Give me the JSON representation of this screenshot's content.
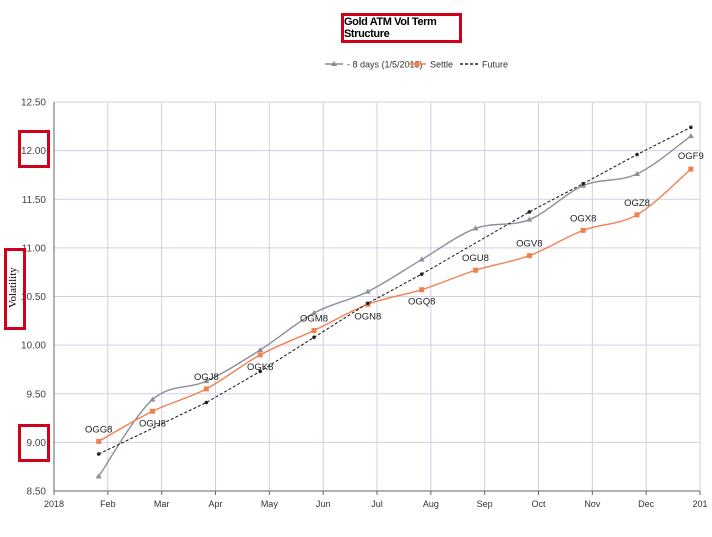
{
  "chart_data": {
    "type": "line",
    "title": "Gold ATM Vol Term Structure",
    "ylabel": "Volatility",
    "ylim": [
      8.5,
      12.5
    ],
    "y_ticks": [
      "12.50",
      "12.00",
      "11.50",
      "11.00",
      "10.50",
      "10.00",
      "9.50",
      "9.00",
      "8.50"
    ],
    "x_tick_labels": [
      "2018",
      "Feb",
      "Mar",
      "Apr",
      "May",
      "Jun",
      "Jul",
      "Aug",
      "Sep",
      "Oct",
      "Nov",
      "Dec",
      "201"
    ],
    "grid": true,
    "legend_position": "top-center",
    "legend": [
      {
        "label": "- 8 days (1/5/2018)",
        "color": "#8e8e9a",
        "style": "solid",
        "marker": "triangle"
      },
      {
        "label": "Settle",
        "color": "#f08050",
        "style": "solid",
        "marker": "square"
      },
      {
        "label": "Future",
        "color": "#222222",
        "style": "dashed",
        "marker": "dot"
      }
    ],
    "highlighted_ticks": [
      "12.00",
      "9.00"
    ],
    "point_labels": [
      "OGG8",
      "OGH8",
      "OGJ8",
      "OGK8",
      "OGM8",
      "OGN8",
      "OGQ8",
      "OGU8",
      "OGV8",
      "OGX8",
      "OGZ8",
      "OGF9"
    ],
    "series": [
      {
        "name": "- 8 days (1/5/2018)",
        "color": "#8e8e9a",
        "x": [
          0.83,
          1.83,
          2.83,
          3.83,
          4.83,
          5.83,
          6.83,
          7.83,
          8.83,
          9.83,
          10.83,
          11.83
        ],
        "values": [
          8.65,
          9.44,
          9.63,
          9.95,
          10.33,
          10.55,
          10.88,
          11.2,
          11.29,
          11.64,
          11.76,
          12.15
        ]
      },
      {
        "name": "Settle",
        "color": "#f08050",
        "x": [
          0.83,
          1.83,
          2.83,
          3.83,
          4.83,
          5.83,
          6.83,
          7.83,
          8.83,
          9.83,
          10.83,
          11.83
        ],
        "values": [
          9.01,
          9.32,
          9.55,
          9.9,
          10.15,
          10.42,
          10.57,
          10.77,
          10.92,
          11.18,
          11.34,
          11.81
        ]
      },
      {
        "name": "Future",
        "color": "#222222",
        "x": [
          0.83,
          2.83,
          3.83,
          4.83,
          5.83,
          6.83,
          8.83,
          9.83,
          10.83,
          11.83
        ],
        "values": [
          8.88,
          9.41,
          9.73,
          10.08,
          10.43,
          10.73,
          11.37,
          11.66,
          11.96,
          12.24
        ]
      }
    ]
  }
}
